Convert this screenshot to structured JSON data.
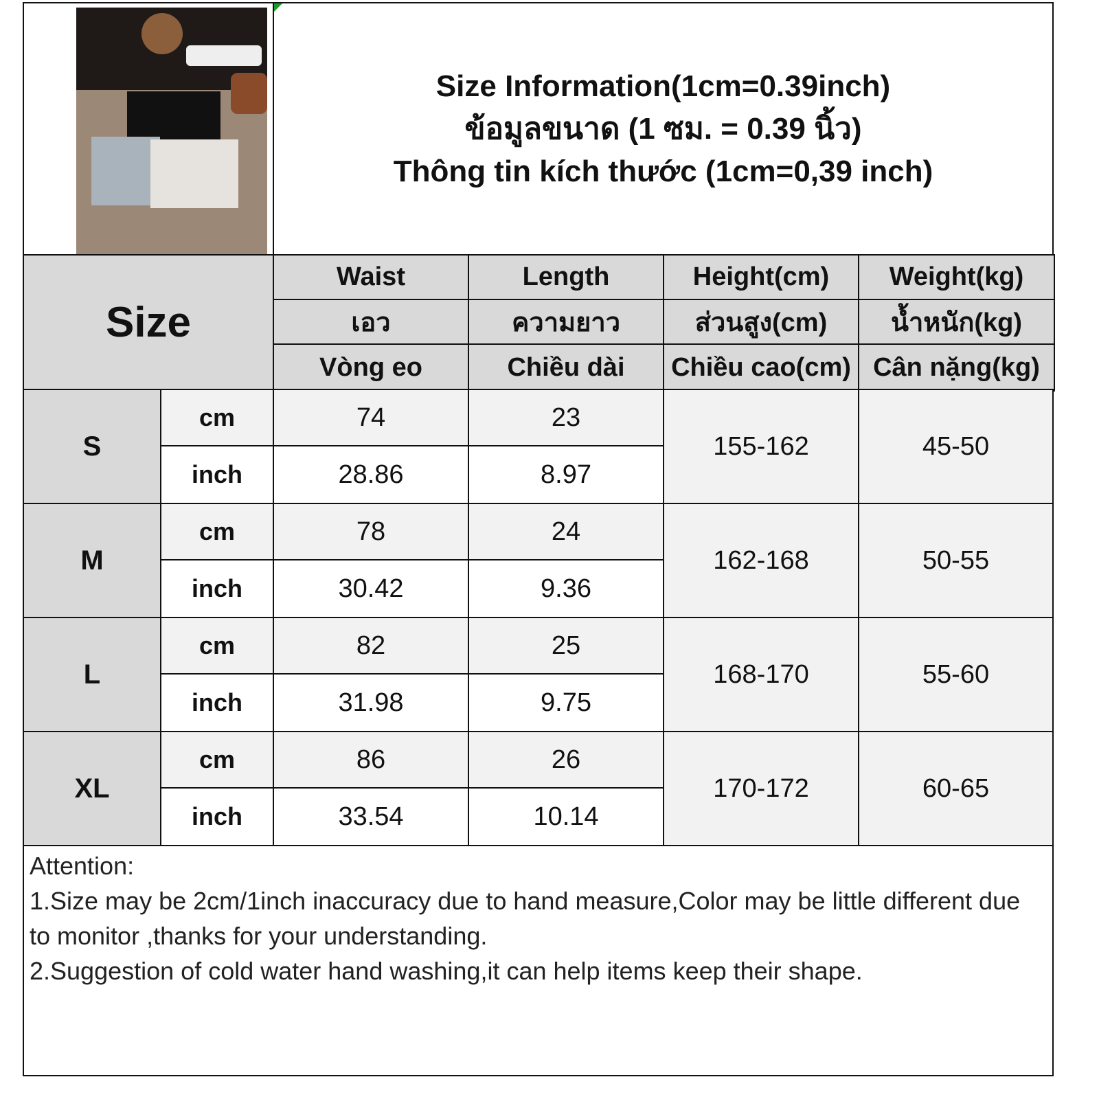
{
  "header": {
    "title_en": "Size Information(1cm=0.39inch)",
    "title_th": "ข้อมูลขนาด (1 ซม. = 0.39 นิ้ว)",
    "title_vi": "Thông tin kích thước (1cm=0,39 inch)"
  },
  "product_image": {
    "icon": "shorts-product-photo"
  },
  "table": {
    "size_label": "Size",
    "columns": [
      {
        "en": "Waist",
        "th": "เอว",
        "vi": "Vòng eo"
      },
      {
        "en": "Length",
        "th": "ความยาว",
        "vi": "Chiều dài"
      },
      {
        "en": "Height(cm)",
        "th": "ส่วนสูง(cm)",
        "vi": "Chiều cao(cm)"
      },
      {
        "en": "Weight(kg)",
        "th": "น้ำหนัก(kg)",
        "vi": "Cân nặng(kg)"
      }
    ],
    "unit_cm": "cm",
    "unit_inch": "inch",
    "rows": [
      {
        "size": "S",
        "waist_cm": "74",
        "waist_inch": "28.86",
        "length_cm": "23",
        "length_inch": "8.97",
        "height": "155-162",
        "weight": "45-50"
      },
      {
        "size": "M",
        "waist_cm": "78",
        "waist_inch": "30.42",
        "length_cm": "24",
        "length_inch": "9.36",
        "height": "162-168",
        "weight": "50-55"
      },
      {
        "size": "L",
        "waist_cm": "82",
        "waist_inch": "31.98",
        "length_cm": "25",
        "length_inch": "9.75",
        "height": "168-170",
        "weight": "55-60"
      },
      {
        "size": "XL",
        "waist_cm": "86",
        "waist_inch": "33.54",
        "length_cm": "26",
        "length_inch": "10.14",
        "height": "170-172",
        "weight": "60-65"
      }
    ]
  },
  "attention": {
    "heading": "Attention:",
    "line1": "1.Size may be 2cm/1inch inaccuracy due to hand measure,Color may be little different due to monitor ,thanks for your understanding.",
    "line2": "2.Suggestion of cold water hand washing,it can help items keep their shape."
  },
  "colors": {
    "header_fill": "#d9d9d9",
    "light_row": "#f2f2f2",
    "border": "#111111"
  }
}
